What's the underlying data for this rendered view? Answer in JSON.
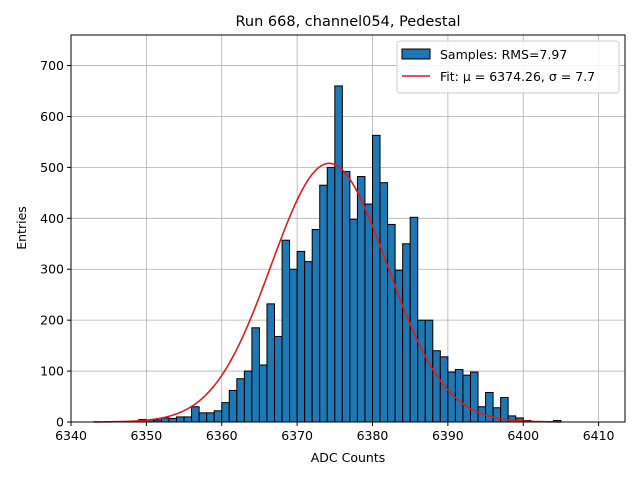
{
  "chart_data": {
    "type": "bar",
    "title": "Run 668, channel054, Pedestal",
    "xlabel": "ADC Counts",
    "ylabel": "Entries",
    "xlim": [
      6340,
      6413.5
    ],
    "ylim": [
      0,
      760
    ],
    "xticks": [
      6340,
      6350,
      6360,
      6370,
      6380,
      6390,
      6400,
      6410
    ],
    "yticks": [
      0,
      100,
      200,
      300,
      400,
      500,
      600,
      700
    ],
    "grid": true,
    "bin_start": 6343,
    "bin_width": 1,
    "counts": [
      0,
      0,
      1,
      0,
      0,
      0,
      5,
      4,
      4,
      8,
      7,
      10,
      10,
      30,
      18,
      18,
      22,
      38,
      62,
      85,
      100,
      185,
      112,
      232,
      168,
      357,
      300,
      335,
      315,
      378,
      465,
      500,
      660,
      492,
      398,
      482,
      428,
      563,
      470,
      388,
      298,
      350,
      402,
      200,
      200,
      140,
      128,
      98,
      103,
      92,
      98,
      30,
      58,
      28,
      48,
      12,
      8,
      3,
      0,
      0,
      0,
      3
    ],
    "fit": {
      "mu": 6374.26,
      "sigma": 7.7,
      "amplitude": 508
    },
    "legend": {
      "position": "top-right",
      "entries": [
        {
          "name": "Samples: RMS=7.97",
          "kind": "bar",
          "color": "#1f77b4"
        },
        {
          "name": "Fit: μ = 6374.26, σ = 7.7",
          "kind": "line",
          "color": "#e31a1c"
        }
      ]
    },
    "colors": {
      "bar": "#1f77b4",
      "bar_edge": "#000000",
      "fit": "#e31a1c",
      "grid": "#b0b0b0"
    }
  }
}
